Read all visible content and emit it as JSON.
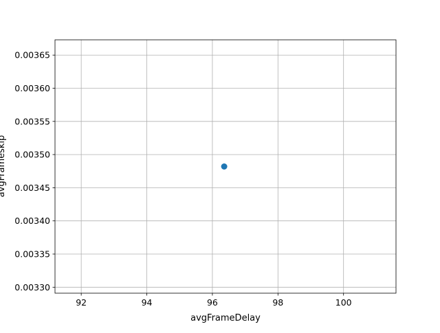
{
  "chart_data": {
    "type": "scatter",
    "title": "",
    "xlabel": "avgFrameDelay",
    "ylabel": "avgFrameskip",
    "xlim": [
      91.2,
      101.6
    ],
    "ylim": [
      0.003291,
      0.003673
    ],
    "xticks": [
      92,
      94,
      96,
      98,
      100
    ],
    "xtick_labels": [
      "92",
      "94",
      "96",
      "98",
      "100"
    ],
    "yticks": [
      0.0033,
      0.00335,
      0.0034,
      0.00345,
      0.0035,
      0.00355,
      0.0036,
      0.00365
    ],
    "ytick_labels": [
      "0.00330",
      "0.00335",
      "0.00340",
      "0.00345",
      "0.00350",
      "0.00355",
      "0.00360",
      "0.00365"
    ],
    "grid": true,
    "series": [
      {
        "color": "#1f77b4",
        "points": [
          {
            "x": 96.36,
            "y": 0.003482
          }
        ]
      }
    ]
  }
}
